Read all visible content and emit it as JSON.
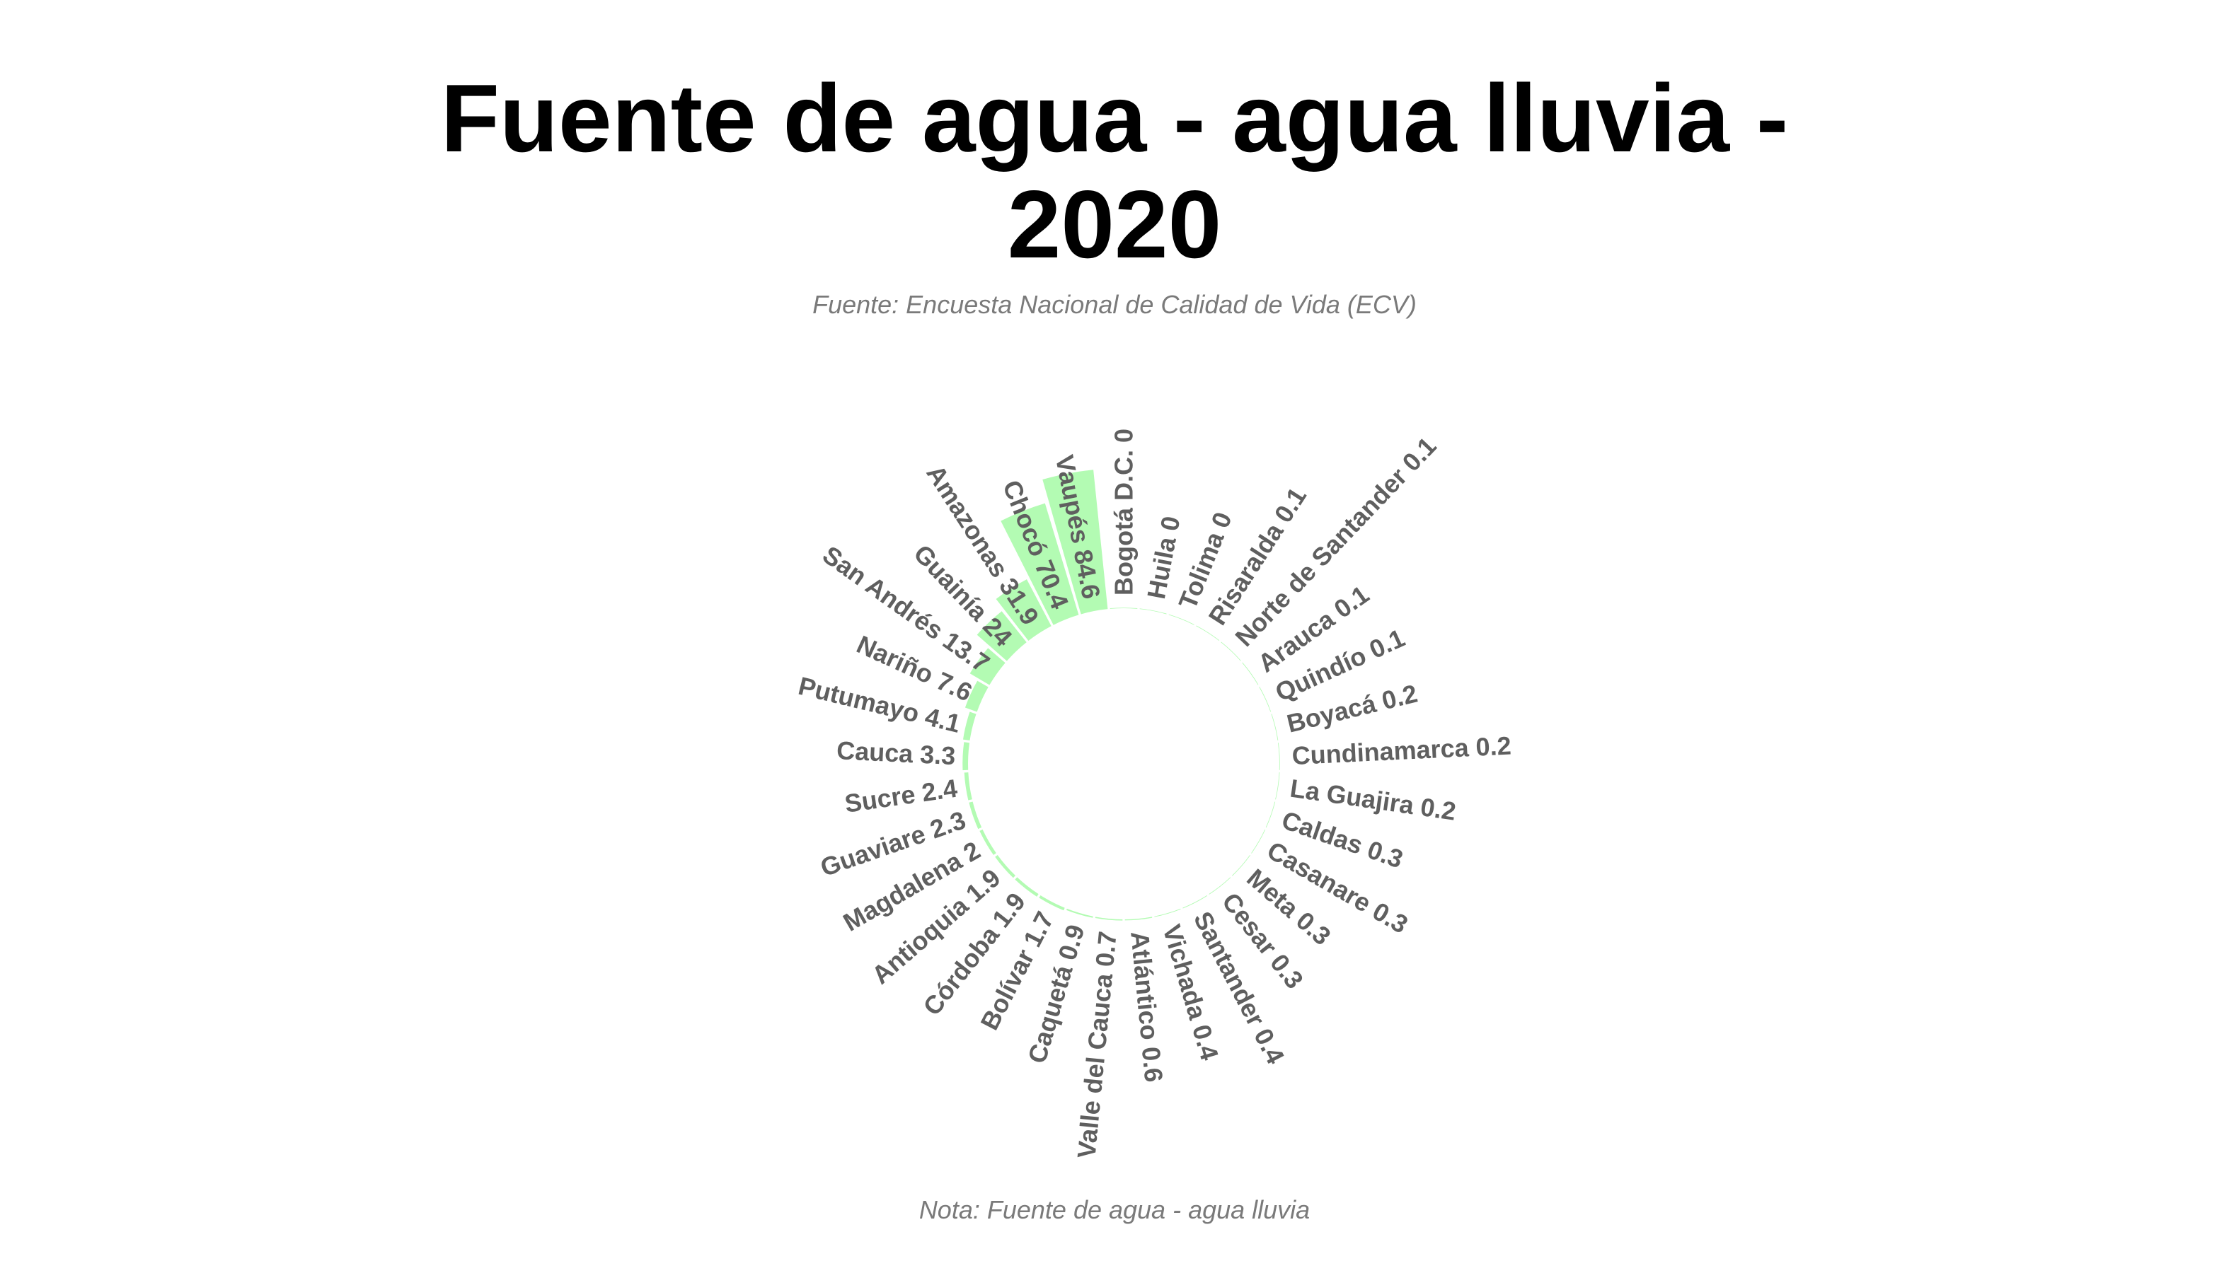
{
  "title_lines": [
    "Fuente de agua - agua lluvia -",
    "2020"
  ],
  "subtitle": "Fuente: Encuesta Nacional de Calidad de Vida (ECV)",
  "note": "Nota: Fuente de agua - agua lluvia",
  "colors": {
    "bar": "#b3fbb3",
    "label": "#5f5f5f",
    "title": "#000000",
    "caption": "#7a7a7a"
  },
  "chart_data": {
    "type": "bar",
    "layout": "circular",
    "categories": [
      "Bogotá D.C.",
      "Huila",
      "Tolima",
      "Risaralda",
      "Norte de Santander",
      "Arauca",
      "Quindío",
      "Boyacá",
      "Cundinamarca",
      "La Guajira",
      "Caldas",
      "Casanare",
      "Meta",
      "Cesar",
      "Santander",
      "Vichada",
      "Atlántico",
      "Valle del Cauca",
      "Caquetá",
      "Bolívar",
      "Córdoba",
      "Antioquia",
      "Magdalena",
      "Guaviare",
      "Sucre",
      "Cauca",
      "Putumayo",
      "Nariño",
      "San Andrés",
      "Guainía",
      "Amazonas",
      "Chocó",
      "Vaupés"
    ],
    "values": [
      0,
      0,
      0,
      0.1,
      0.1,
      0.1,
      0.1,
      0.2,
      0.2,
      0.2,
      0.3,
      0.3,
      0.3,
      0.3,
      0.4,
      0.4,
      0.6,
      0.7,
      0.9,
      1.7,
      1.9,
      1.9,
      2,
      2.3,
      2.4,
      3.3,
      4.1,
      7.6,
      13.7,
      24,
      31.9,
      70.4,
      84.6
    ],
    "labels": [
      "Bogotá D.C. 0",
      "Huila 0",
      "Tolima 0",
      "Risaralda 0.1",
      "Norte de Santander 0.1",
      "Arauca 0.1",
      "Quindío 0.1",
      "Boyacá 0.2",
      "Cundinamarca 0.2",
      "La Guajira 0.2",
      "Caldas 0.3",
      "Casanare 0.3",
      "Meta 0.3",
      "Cesar 0.3",
      "Santander 0.4",
      "Vichada 0.4",
      "Atlántico 0.6",
      "Valle del Cauca 0.7",
      "Caquetá 0.9",
      "Bolívar 1.7",
      "Córdoba 1.9",
      "Antioquia 1.9",
      "Magdalena 2",
      "Guaviare 2.3",
      "Sucre 2.4",
      "Cauca 3.3",
      "Putumayo 4.1",
      "Nariño 7.6",
      "San Andrés 13.7",
      "Guainía 24",
      "Amazonas 31.9",
      "Chocó 70.4",
      "Vaupés 84.6"
    ],
    "title": "Fuente de agua - agua lluvia - 2020",
    "ylim": [
      0,
      84.6
    ],
    "grid": false,
    "legend": "none"
  }
}
